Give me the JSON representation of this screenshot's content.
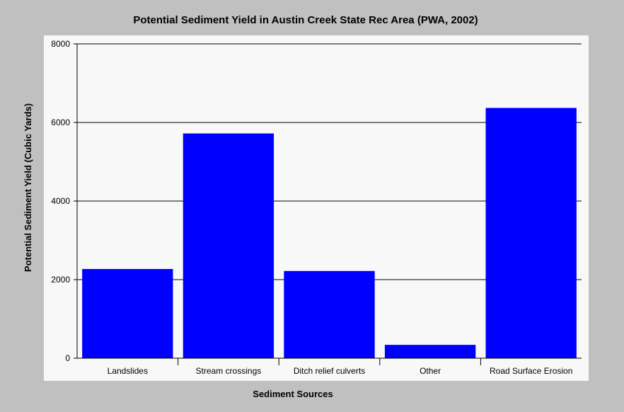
{
  "chart_data": {
    "type": "bar",
    "title": "Potential Sediment Yield in Austin Creek State Rec Area (PWA, 2002)",
    "xlabel": "Sediment Sources",
    "ylabel": "Potential Sediment Yield (Cubic Yards)",
    "categories": [
      "Landslides",
      "Stream crossings",
      "Ditch relief culverts",
      "Other",
      "Road Surface Erosion"
    ],
    "values": [
      2270,
      5720,
      2220,
      340,
      6370
    ],
    "ylim": [
      0,
      8000
    ],
    "yticks": [
      "0",
      "2000",
      "4000",
      "6000",
      "8000"
    ],
    "grid": true,
    "legend": "none",
    "colors": {
      "bar": "#0000ff",
      "plot_background": "#f8f8f8",
      "page_background": "#c0c0c0",
      "gridline": "#000000"
    }
  }
}
